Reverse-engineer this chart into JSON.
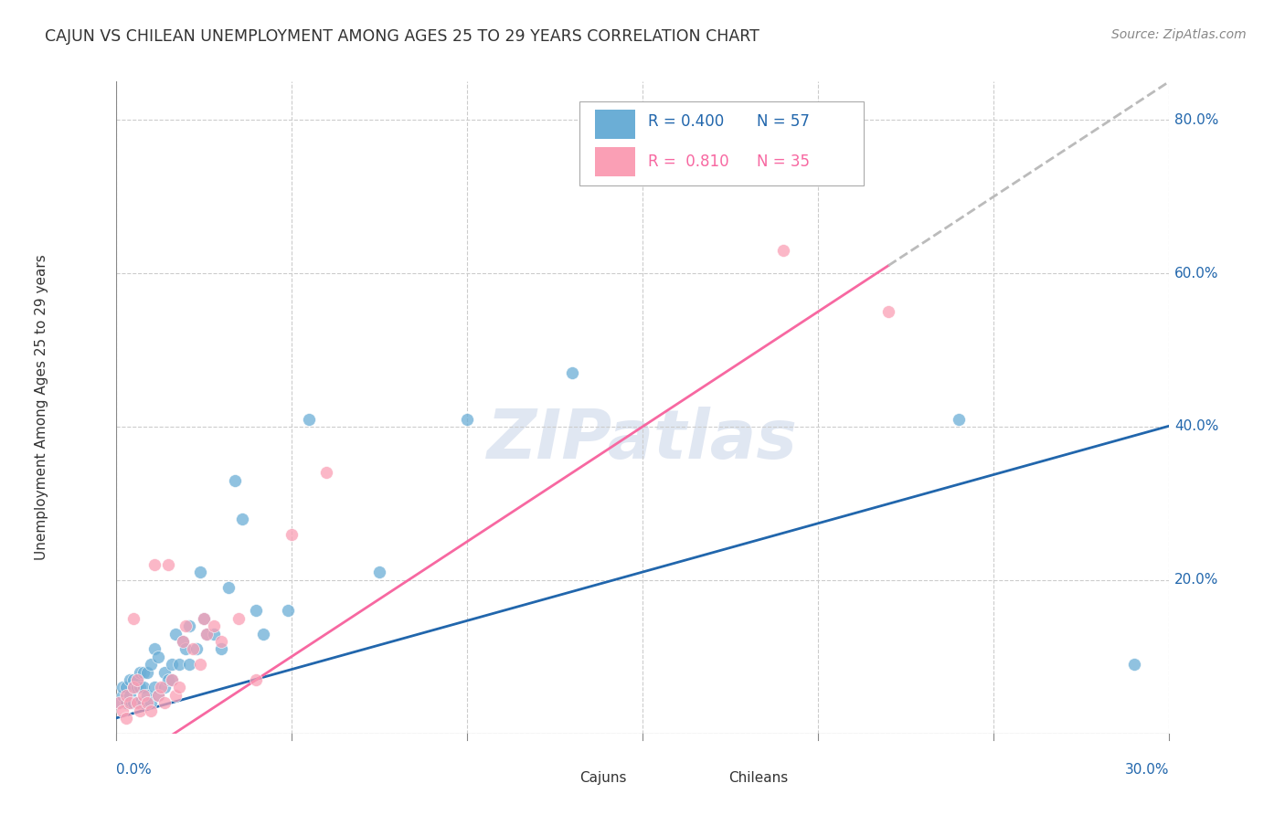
{
  "title": "CAJUN VS CHILEAN UNEMPLOYMENT AMONG AGES 25 TO 29 YEARS CORRELATION CHART",
  "source": "Source: ZipAtlas.com",
  "ylabel": "Unemployment Among Ages 25 to 29 years",
  "xlim": [
    0.0,
    0.3
  ],
  "ylim": [
    0.0,
    0.85
  ],
  "yticks": [
    0.0,
    0.2,
    0.4,
    0.6,
    0.8
  ],
  "ytick_labels": [
    "",
    "20.0%",
    "40.0%",
    "60.0%",
    "80.0%"
  ],
  "xtick_vals": [
    0.0,
    0.05,
    0.1,
    0.15,
    0.2,
    0.25,
    0.3
  ],
  "cajun_color": "#6baed6",
  "chilean_color": "#fa9fb5",
  "cajun_line_color": "#2166ac",
  "chilean_line_color": "#f768a1",
  "legend_R_cajun": "0.400",
  "legend_N_cajun": "57",
  "legend_R_chilean": "0.810",
  "legend_N_chilean": "35",
  "watermark": "ZIPatlas",
  "cajun_x": [
    0.001,
    0.002,
    0.002,
    0.003,
    0.003,
    0.004,
    0.004,
    0.004,
    0.005,
    0.005,
    0.005,
    0.006,
    0.006,
    0.006,
    0.007,
    0.007,
    0.007,
    0.008,
    0.008,
    0.008,
    0.009,
    0.009,
    0.01,
    0.01,
    0.011,
    0.011,
    0.012,
    0.012,
    0.014,
    0.014,
    0.015,
    0.016,
    0.016,
    0.017,
    0.018,
    0.019,
    0.02,
    0.021,
    0.021,
    0.023,
    0.024,
    0.025,
    0.026,
    0.028,
    0.03,
    0.032,
    0.034,
    0.036,
    0.04,
    0.042,
    0.049,
    0.055,
    0.075,
    0.1,
    0.13,
    0.24,
    0.29
  ],
  "cajun_y": [
    0.04,
    0.05,
    0.06,
    0.04,
    0.06,
    0.04,
    0.05,
    0.07,
    0.04,
    0.06,
    0.07,
    0.04,
    0.06,
    0.07,
    0.04,
    0.06,
    0.08,
    0.04,
    0.06,
    0.08,
    0.05,
    0.08,
    0.04,
    0.09,
    0.06,
    0.11,
    0.05,
    0.1,
    0.06,
    0.08,
    0.07,
    0.07,
    0.09,
    0.13,
    0.09,
    0.12,
    0.11,
    0.14,
    0.09,
    0.11,
    0.21,
    0.15,
    0.13,
    0.13,
    0.11,
    0.19,
    0.33,
    0.28,
    0.16,
    0.13,
    0.16,
    0.41,
    0.21,
    0.41,
    0.47,
    0.41,
    0.09
  ],
  "chilean_x": [
    0.001,
    0.002,
    0.003,
    0.003,
    0.004,
    0.005,
    0.005,
    0.006,
    0.006,
    0.007,
    0.008,
    0.009,
    0.01,
    0.011,
    0.012,
    0.013,
    0.014,
    0.015,
    0.016,
    0.017,
    0.018,
    0.019,
    0.02,
    0.022,
    0.024,
    0.025,
    0.026,
    0.028,
    0.03,
    0.035,
    0.04,
    0.05,
    0.06,
    0.19,
    0.22
  ],
  "chilean_y": [
    0.04,
    0.03,
    0.05,
    0.02,
    0.04,
    0.06,
    0.15,
    0.04,
    0.07,
    0.03,
    0.05,
    0.04,
    0.03,
    0.22,
    0.05,
    0.06,
    0.04,
    0.22,
    0.07,
    0.05,
    0.06,
    0.12,
    0.14,
    0.11,
    0.09,
    0.15,
    0.13,
    0.14,
    0.12,
    0.15,
    0.07,
    0.26,
    0.34,
    0.63,
    0.55
  ],
  "background_color": "#ffffff",
  "grid_color": "#cccccc",
  "title_color": "#333333",
  "axis_label_color": "#2166ac",
  "right_ytick_color": "#2166ac",
  "cajun_line_intercept": 0.02,
  "cajun_line_slope": 1.27,
  "chilean_line_intercept": -0.05,
  "chilean_line_slope": 3.0
}
